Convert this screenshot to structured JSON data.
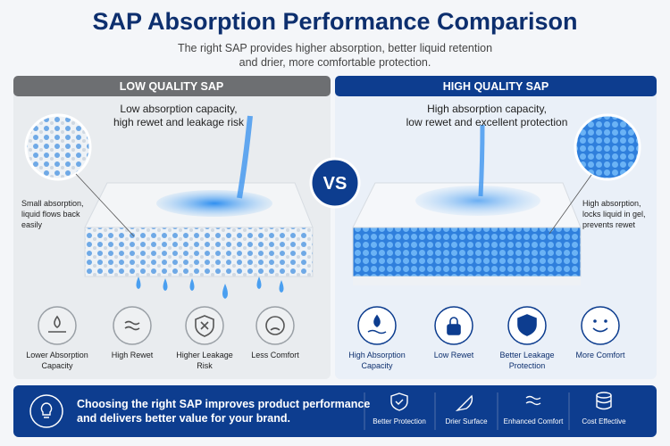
{
  "header": {
    "title": "SAP Absorption Performance Comparison",
    "subtitle_lines": [
      "The right SAP provides higher absorption, better liquid retention",
      "and drier, more comfortable protection."
    ]
  },
  "vs": "VS",
  "panels": [
    {
      "heading": "LOW QUALITY SAP",
      "description_lines": [
        "Low absorption capacity,",
        "high rewet and leakage risk"
      ],
      "callout_lines": [
        "Small absorption,",
        "liquid flows back",
        "easily"
      ],
      "features": [
        [
          "Lower Absorption",
          "Capacity"
        ],
        [
          "High Rewet"
        ],
        [
          "Higher Leakage",
          "Risk"
        ],
        [
          "Less Comfort"
        ]
      ]
    },
    {
      "heading": "HIGH QUALITY SAP",
      "description_lines": [
        "High absorption capacity,",
        "low rewet and excellent protection"
      ],
      "callout_lines": [
        "High absorption,",
        "locks liquid in gel,",
        "prevents rewet"
      ],
      "features": [
        [
          "High Absorption",
          "Capacity"
        ],
        [
          "Low Rewet"
        ],
        [
          "Better Leakage",
          "Protection"
        ],
        [
          "More Comfort"
        ]
      ]
    }
  ],
  "footer": {
    "message_lines": [
      "Choosing the right SAP improves product performance",
      "and delivers better value for your brand."
    ],
    "benefits": [
      "Better Protection",
      "Drier Surface",
      "Enhanced Comfort",
      "Cost Effective"
    ]
  }
}
